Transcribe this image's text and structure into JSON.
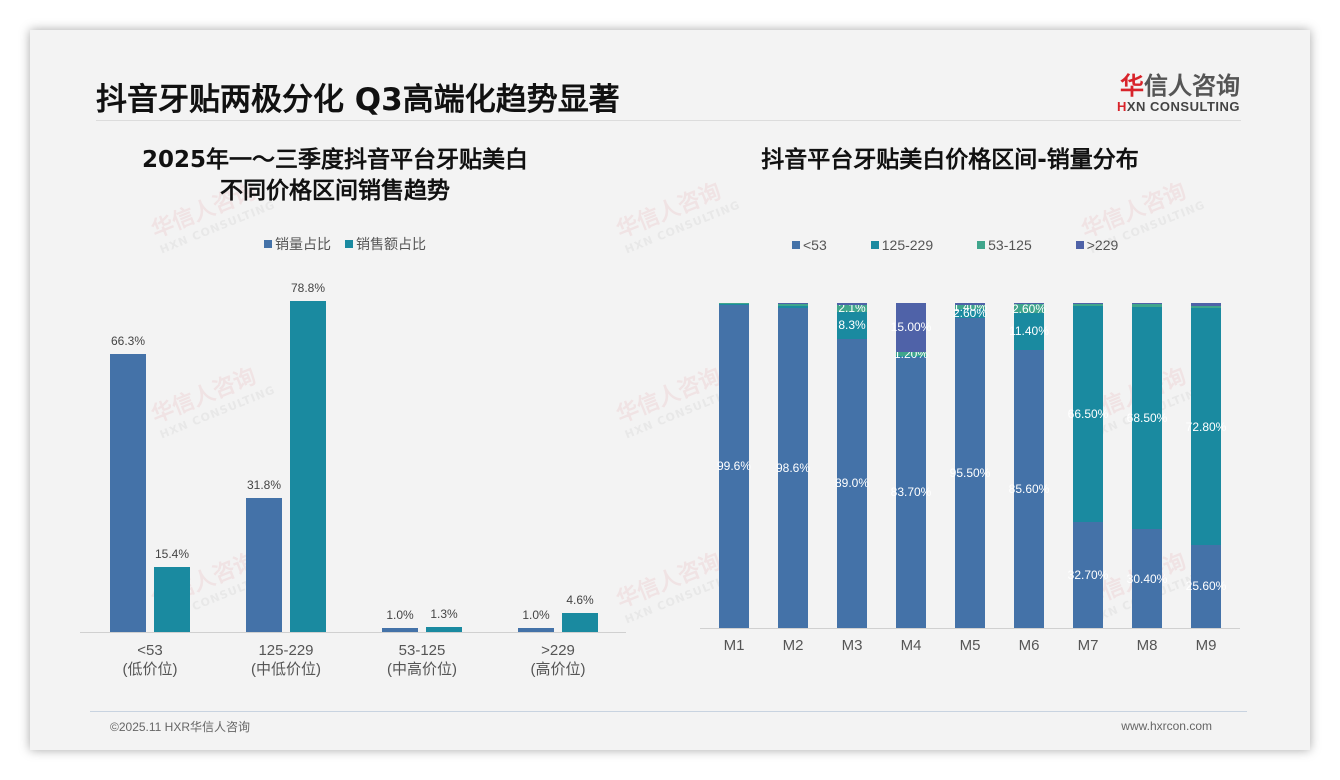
{
  "header": {
    "title": "抖音牙贴两极分化 Q3高端化趋势显著",
    "logo_cn_first": "华",
    "logo_cn_rest": "信人咨询",
    "logo_en_first": "H",
    "logo_en_rest": "XN CONSULTING"
  },
  "watermark": {
    "cn": "华信人咨询",
    "en": "HXN CONSULTING"
  },
  "footer": {
    "copyright": "©2025.11 HXR华信人咨询",
    "website": "www.hxrcon.com"
  },
  "colors": {
    "volume": "#4472a8",
    "sales": "#1a8aa0",
    "lt53": "#4472a8",
    "r125_229": "#1a8aa0",
    "r53_125": "#3fa58c",
    "gt229": "#4f62a8"
  },
  "chart_data": [
    {
      "type": "bar",
      "title": "2025年一～三季度抖音平台牙贴美白不同价格区间销售趋势",
      "title_line1": "2025年一～三季度抖音平台牙贴美白",
      "title_line2": "不同价格区间销售趋势",
      "categories": [
        "<53",
        "125-229",
        "53-125",
        ">229"
      ],
      "category_sublabels": [
        "(低价位)",
        "(中低价位)",
        "(中高价位)",
        "(高价位)"
      ],
      "series": [
        {
          "name": "销量占比",
          "values": [
            66.3,
            31.8,
            1.0,
            1.0
          ],
          "labels": [
            "66.3%",
            "31.8%",
            "1.0%",
            "1.0%"
          ]
        },
        {
          "name": "销售额占比",
          "values": [
            15.4,
            78.8,
            1.3,
            4.6
          ],
          "labels": [
            "15.4%",
            "78.8%",
            "1.3%",
            "4.6%"
          ]
        }
      ],
      "legend_position": "top",
      "grid": false,
      "ylim": [
        0,
        85
      ],
      "xlabel": "",
      "ylabel": ""
    },
    {
      "type": "bar",
      "stacked": true,
      "title": "抖音平台牙贴美白价格区间-销量分布",
      "categories": [
        "M1",
        "M2",
        "M3",
        "M4",
        "M5",
        "M6",
        "M7",
        "M8",
        "M9"
      ],
      "series": [
        {
          "name": "<53",
          "values": [
            99.6,
            98.6,
            89.0,
            83.7,
            95.5,
            85.6,
            32.7,
            30.4,
            25.6
          ],
          "labels": [
            "99.6%",
            "98.6%",
            "89.0%",
            "83.70%",
            "95.50%",
            "85.60%",
            "32.70%",
            "30.40%",
            "25.60%"
          ]
        },
        {
          "name": "125-229",
          "values": [
            0.2,
            0.4,
            8.3,
            0.1,
            2.6,
            11.4,
            66.5,
            68.5,
            72.8
          ],
          "labels": [
            "0.2%",
            "0.4%",
            "8.3%",
            "0.10%",
            "2.60%",
            "11.40%",
            "66.50%",
            "68.50%",
            "72.80%"
          ]
        },
        {
          "name": "53-125",
          "values": [
            0.2,
            0.9,
            2.1,
            1.2,
            1.4,
            2.6,
            0.5,
            0.7,
            0.7
          ],
          "labels": [
            "0.2%",
            "0.9%",
            "2.1%",
            "1.20%",
            "1.40%",
            "2.60%",
            "0.50%",
            "0.70%",
            "0.70%"
          ]
        },
        {
          "name": ">229",
          "values": [
            0.0,
            0.1,
            0.6,
            15.0,
            0.5,
            0.4,
            0.3,
            0.4,
            0.9
          ],
          "labels": [
            "",
            "",
            "",
            "15.00%",
            "",
            "",
            "0.30%",
            "0.40%",
            "0.90%"
          ]
        }
      ],
      "legend_position": "top",
      "grid": false,
      "ylim": [
        0,
        100
      ],
      "xlabel": "",
      "ylabel": ""
    }
  ]
}
